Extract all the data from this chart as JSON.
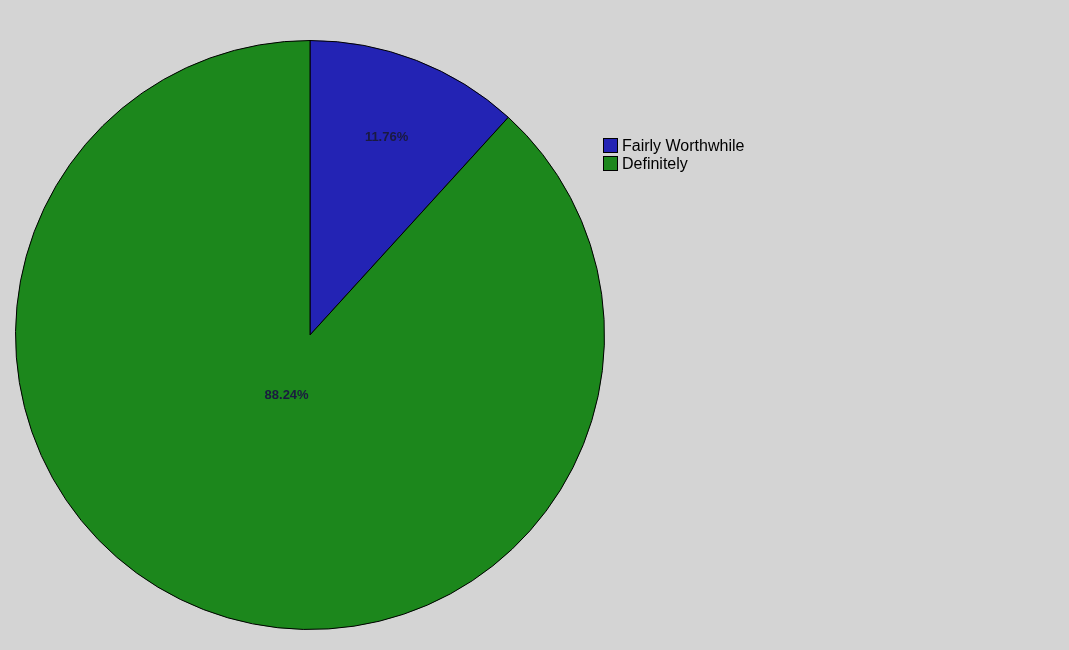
{
  "chart_data": {
    "type": "pie",
    "categories": [
      "Fairly Worthwhile",
      "Definitely"
    ],
    "values": [
      11.76,
      88.24
    ],
    "colors": [
      "#2323b4",
      "#1c871c"
    ],
    "value_labels": [
      "11.76%",
      "88.24%"
    ],
    "legend": "right"
  }
}
